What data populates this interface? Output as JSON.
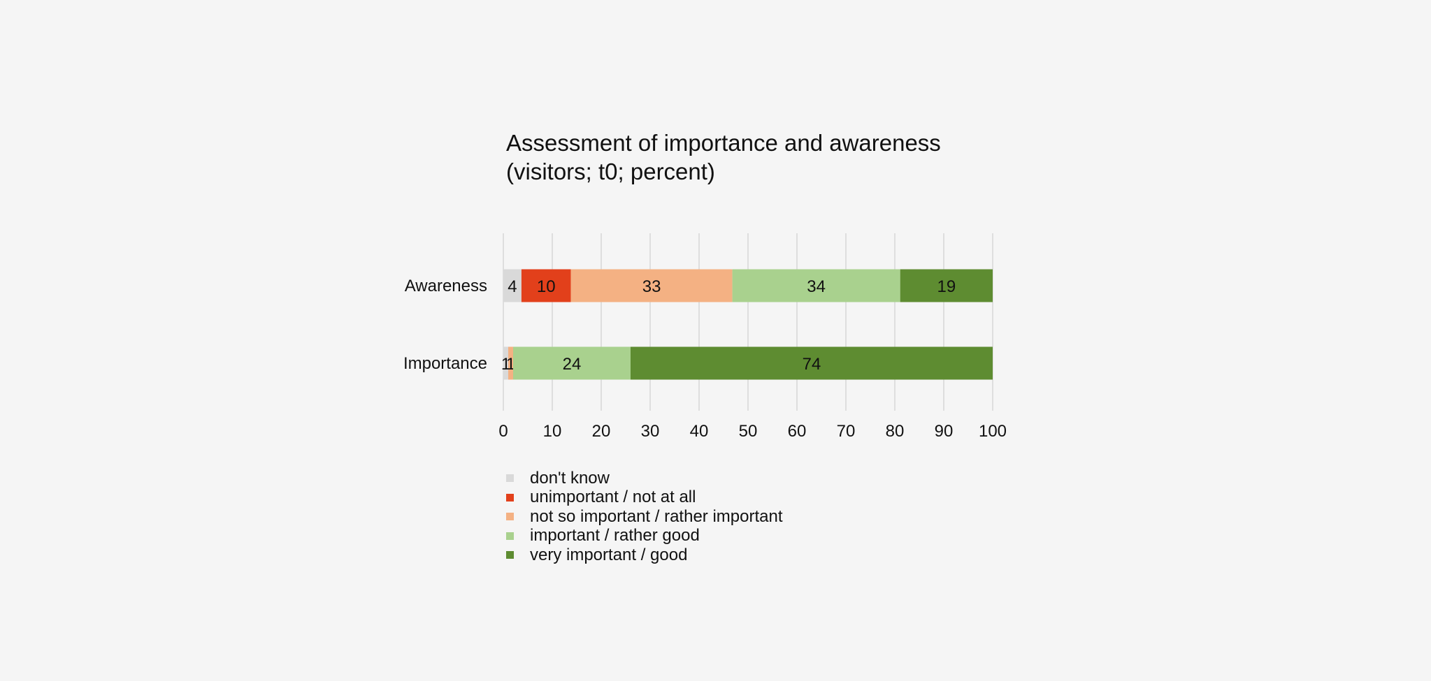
{
  "chart_data": {
    "type": "bar",
    "orientation": "horizontal",
    "stacked": true,
    "title": "Assessment of importance and awareness",
    "subtitle": "(visitors; t0; percent)",
    "categories": [
      "Awareness",
      "Importance"
    ],
    "series": [
      {
        "name": "don't know",
        "color": "#d9d9d9",
        "values": [
          3.7,
          1
        ],
        "labels": [
          "4",
          "1"
        ]
      },
      {
        "name": "unimportant / not at all",
        "color": "#e2401b",
        "values": [
          10.1,
          0
        ],
        "labels": [
          "10",
          ""
        ]
      },
      {
        "name": "not so important / rather important",
        "color": "#f4b183",
        "values": [
          33,
          1
        ],
        "labels": [
          "33",
          "1"
        ]
      },
      {
        "name": "important / rather good",
        "color": "#a9d18e",
        "values": [
          34.3,
          24
        ],
        "labels": [
          "34",
          "24"
        ]
      },
      {
        "name": "very important / good",
        "color": "#5e8c31",
        "values": [
          18.9,
          74
        ],
        "labels": [
          "19",
          "74"
        ]
      }
    ],
    "xlim": [
      0,
      100
    ],
    "xticks": [
      "0",
      "10",
      "20",
      "30",
      "40",
      "50",
      "60",
      "70",
      "80",
      "90",
      "100"
    ],
    "grid": true,
    "legend_position": "bottom"
  }
}
